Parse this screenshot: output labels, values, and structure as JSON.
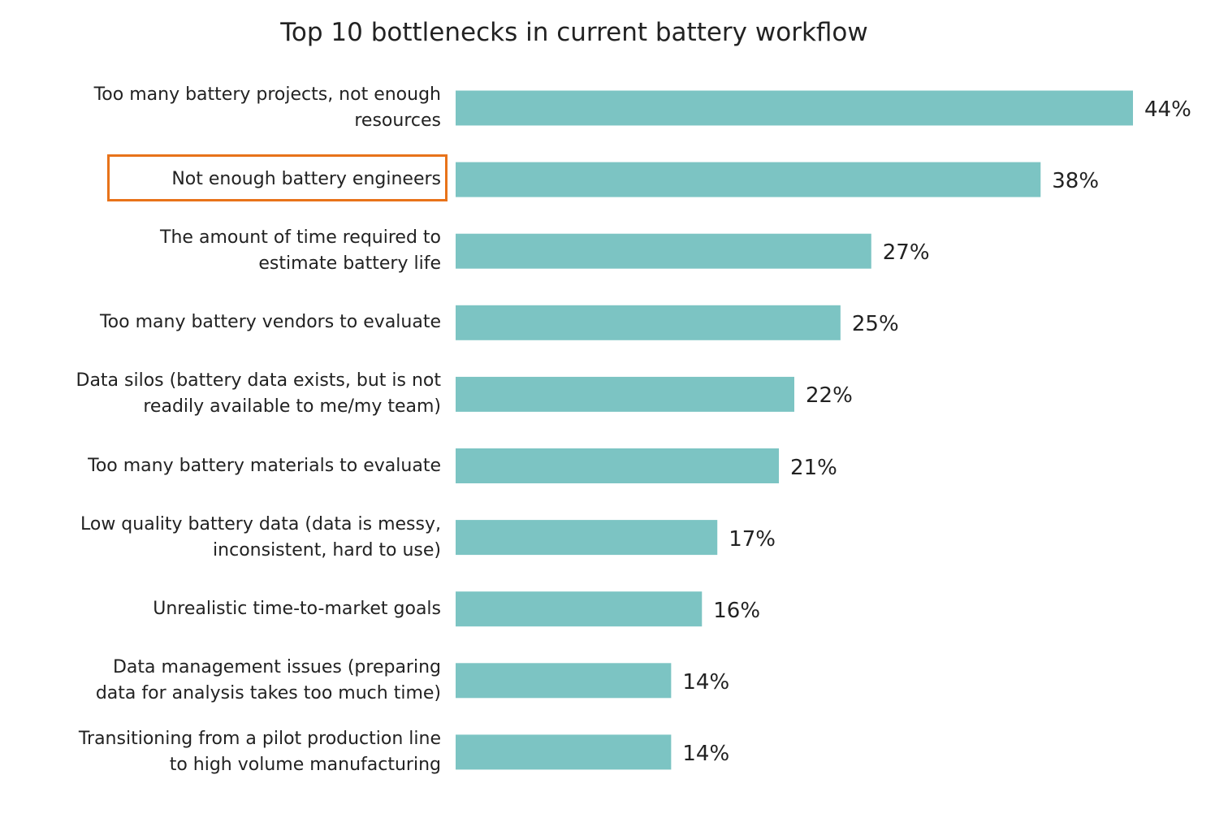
{
  "chart_data": {
    "type": "bar",
    "orientation": "horizontal",
    "title": "Top 10 bottlenecks in current battery workflow",
    "categories": [
      "Too many battery projects, not enough\nresources",
      "Not enough battery engineers",
      "The amount of time required to\nestimate battery life",
      "Too many battery vendors to evaluate",
      "Data silos (battery data exists, but is not\nreadily available to me/my team)",
      "Too many battery materials to evaluate",
      "Low quality battery data (data is messy,\ninconsistent, hard to use)",
      "Unrealistic time-to-market goals",
      "Data management issues (preparing\ndata for analysis takes too much time)",
      "Transitioning from a pilot production line\nto high volume manufacturing"
    ],
    "values": [
      44,
      38,
      27,
      25,
      22,
      21,
      17,
      16,
      14,
      14
    ],
    "value_labels": [
      "44%",
      "38%",
      "27%",
      "25%",
      "22%",
      "21%",
      "17%",
      "16%",
      "14%",
      "14%"
    ],
    "color": "#7cc4c3",
    "highlighted_category": 1,
    "highlight_color": "#e8731a"
  }
}
